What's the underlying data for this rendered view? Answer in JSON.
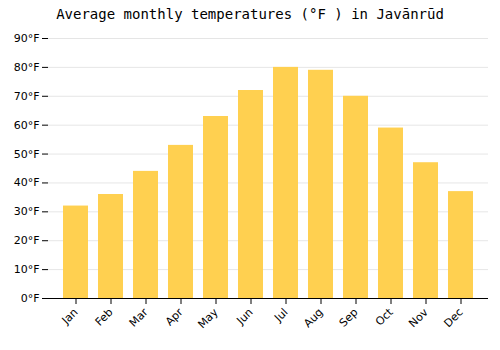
{
  "chart_data": {
    "type": "bar",
    "title": "Average monthly temperatures (°F ) in Javānrūd",
    "categories": [
      "Jan",
      "Feb",
      "Mar",
      "Apr",
      "May",
      "Jun",
      "Jul",
      "Aug",
      "Sep",
      "Oct",
      "Nov",
      "Dec"
    ],
    "values": [
      32,
      36,
      44,
      53,
      63,
      72,
      80,
      79,
      70,
      59,
      47,
      37
    ],
    "color": "#FFD050",
    "ylim": [
      0,
      90
    ],
    "yticks": [
      {
        "value": 0,
        "label": "0°F"
      },
      {
        "value": 10,
        "label": "10°F"
      },
      {
        "value": 20,
        "label": "20°F"
      },
      {
        "value": 30,
        "label": "30°F"
      },
      {
        "value": 40,
        "label": "40°F"
      },
      {
        "value": 50,
        "label": "50°F"
      },
      {
        "value": 60,
        "label": "60°F"
      },
      {
        "value": 70,
        "label": "70°F"
      },
      {
        "value": 80,
        "label": "80°F"
      },
      {
        "value": 90,
        "label": "90°F"
      }
    ],
    "grid": true
  }
}
